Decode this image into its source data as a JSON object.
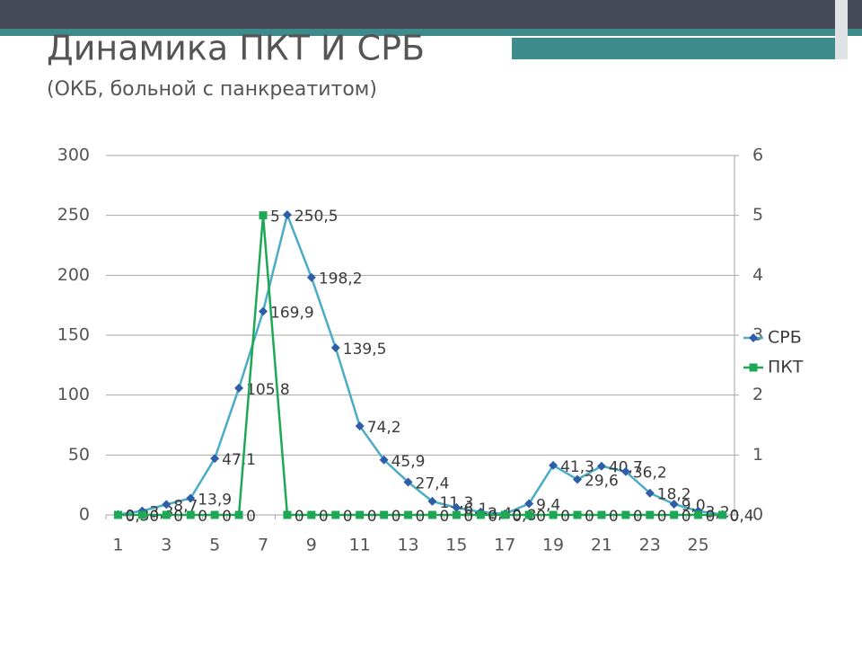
{
  "header": {
    "title": "Динамика  ПКТ И СРБ",
    "subtitle": "(ОКБ, больной с панкреатитом)"
  },
  "chart_data": {
    "type": "line",
    "categories": [
      1,
      null,
      3,
      null,
      5,
      null,
      7,
      null,
      9,
      null,
      11,
      null,
      13,
      null,
      15,
      null,
      17,
      null,
      19,
      null,
      21,
      null,
      23,
      null,
      25,
      null
    ],
    "series": [
      {
        "name": "СРБ",
        "color": "#4bacc6",
        "marker_color": "#2f5ea8",
        "marker": "diamond",
        "values": [
          0.3,
          3.3,
          8.7,
          13.9,
          47.1,
          105.8,
          169.9,
          250.5,
          198.2,
          139.5,
          74.2,
          45.9,
          27.4,
          11.3,
          6.1,
          2.4,
          0.8,
          9.4,
          41.3,
          29.6,
          40.7,
          36.2,
          18.2,
          9.0,
          3.2,
          0.4
        ],
        "value_labels": [
          "0,3",
          "3,3",
          "8,7",
          "13,9",
          "47,1",
          "105,8",
          "169,9",
          "250,5",
          "198,2",
          "139,5",
          "74,2",
          "45,9",
          "27,4",
          "11,3",
          "6,1",
          "2,4",
          "0,8",
          "9,4",
          "41,3",
          "29,6",
          "40,7",
          "36,2",
          "18,2",
          "9,0",
          "3,2",
          "0,4"
        ]
      },
      {
        "name": "ПКТ",
        "color": "#1ea855",
        "marker_color": "#1ea855",
        "marker": "square",
        "axis": "y2",
        "values": [
          0,
          0,
          0,
          0,
          0,
          0,
          5,
          0,
          0,
          0,
          0,
          0,
          0,
          0,
          0,
          0,
          0,
          0,
          0,
          0,
          0,
          0,
          0,
          0,
          0,
          0
        ]
      }
    ],
    "ylim": [
      0,
      300
    ],
    "yticks": [
      0,
      50,
      100,
      150,
      200,
      250,
      300
    ],
    "y2lim": [
      0,
      6
    ],
    "y2ticks": [
      0,
      1,
      2,
      3,
      4,
      5,
      6
    ],
    "grid": true,
    "legend": "right"
  }
}
